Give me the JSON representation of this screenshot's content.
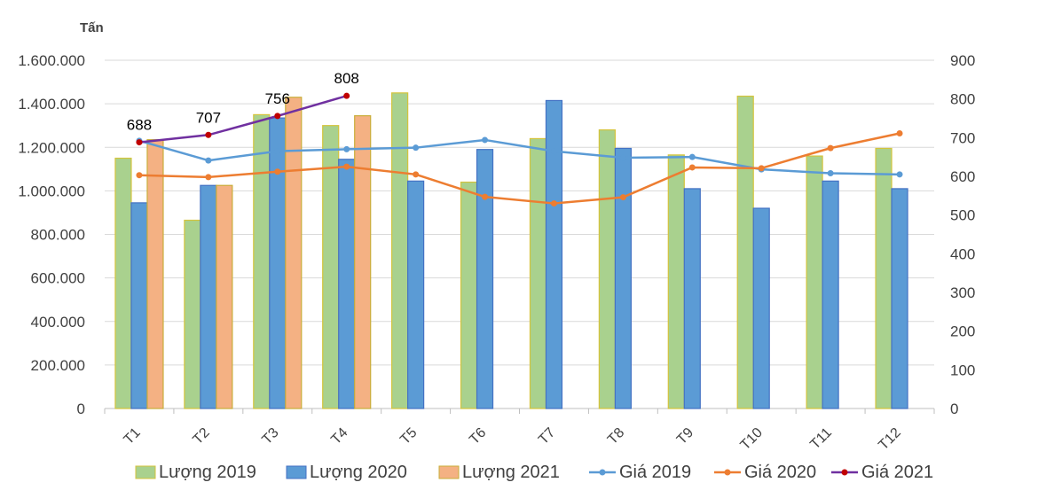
{
  "chart_data": {
    "type": "bar",
    "categories": [
      "T1",
      "T2",
      "T3",
      "T4",
      "T5",
      "T6",
      "T7",
      "T8",
      "T9",
      "T10",
      "T11",
      "T12"
    ],
    "y_unit_label": "Tấn",
    "y_left": {
      "range": [
        0,
        1600000
      ],
      "ticks": [
        0,
        200000,
        400000,
        600000,
        800000,
        1000000,
        1200000,
        1400000,
        1600000
      ],
      "tick_labels": [
        "0",
        "200.000",
        "400.000",
        "600.000",
        "800.000",
        "1.000.000",
        "1.200.000",
        "1.400.000",
        "1.600.000"
      ]
    },
    "y_right": {
      "range": [
        0,
        900
      ],
      "ticks": [
        0,
        100,
        200,
        300,
        400,
        500,
        600,
        700,
        800,
        900
      ],
      "tick_labels": [
        "0",
        "100",
        "200",
        "300",
        "400",
        "500",
        "600",
        "700",
        "800",
        "900"
      ]
    },
    "grid": true,
    "legend_position": "bottom",
    "bar_series": [
      {
        "name": "Lượng 2019",
        "color": "#a9d18e",
        "edge": "#d4c43c",
        "values": [
          1150000,
          865000,
          1350000,
          1300000,
          1450000,
          1040000,
          1240000,
          1280000,
          1165000,
          1435000,
          1160000,
          1195000
        ]
      },
      {
        "name": "Lượng 2020",
        "color": "#5b9bd5",
        "edge": "#4472c4",
        "values": [
          945000,
          1025000,
          1335000,
          1145000,
          1045000,
          1190000,
          1415000,
          1195000,
          1010000,
          920000,
          1045000,
          1010000
        ]
      },
      {
        "name": "Lượng 2021",
        "color": "#f4b183",
        "edge": "#c9ae3a",
        "values": [
          1235000,
          1025000,
          1430000,
          1345000,
          null,
          null,
          null,
          null,
          null,
          null,
          null,
          null
        ]
      }
    ],
    "line_series": [
      {
        "name": "Giá 2019",
        "color": "#5b9bd5",
        "values": [
          692,
          641,
          665,
          670,
          674,
          694,
          665,
          648,
          650,
          618,
          608,
          605
        ]
      },
      {
        "name": "Giá 2020",
        "color": "#ed7d31",
        "values": [
          603,
          598,
          612,
          625,
          605,
          547,
          530,
          546,
          623,
          621,
          673,
          711
        ]
      },
      {
        "name": "Giá 2021",
        "color": "#7030a0",
        "marker_color": "#c00000",
        "values": [
          688,
          707,
          756,
          808,
          null,
          null,
          null,
          null,
          null,
          null,
          null,
          null
        ],
        "labels": [
          "688",
          "707",
          "756",
          "808"
        ]
      }
    ]
  }
}
